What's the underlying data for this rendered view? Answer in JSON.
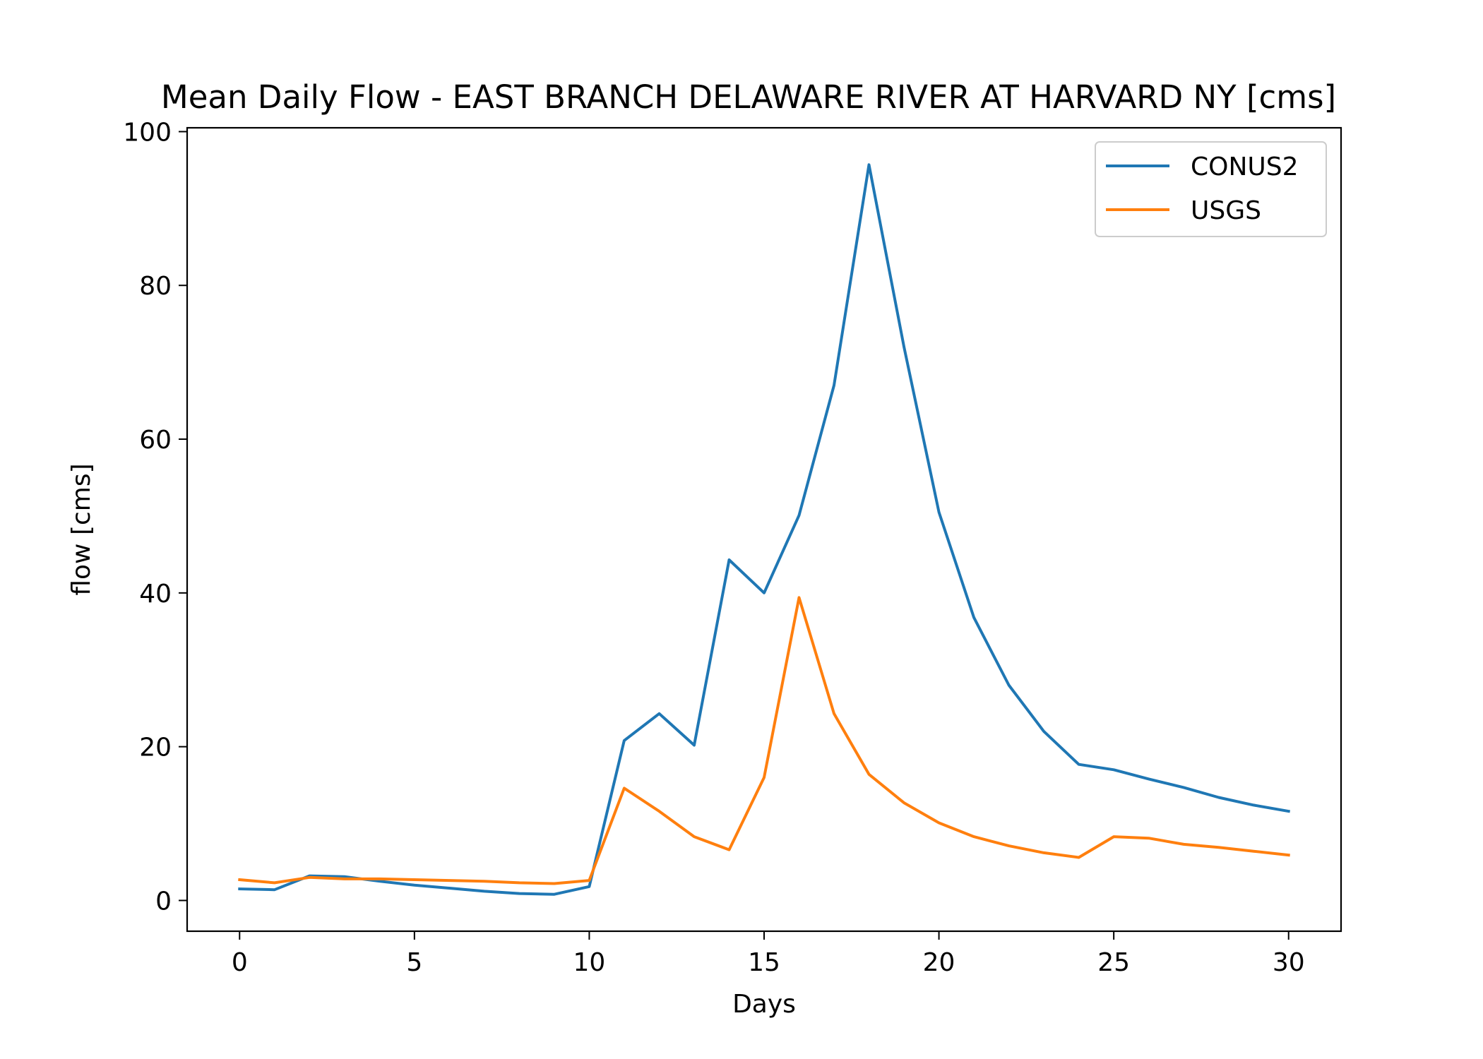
{
  "chart_data": {
    "type": "line",
    "title": "Mean Daily Flow - EAST BRANCH DELAWARE RIVER AT HARVARD NY [cms]",
    "xlabel": "Days",
    "ylabel": "flow [cms]",
    "xlim": [
      -1.5,
      31.5
    ],
    "ylim": [
      -4,
      100.5
    ],
    "xticks": [
      0,
      5,
      10,
      15,
      20,
      25,
      30
    ],
    "yticks": [
      0,
      20,
      40,
      60,
      80,
      100
    ],
    "grid": false,
    "legend_position": "top-right",
    "x": [
      0,
      1,
      2,
      3,
      4,
      5,
      6,
      7,
      8,
      9,
      10,
      11,
      12,
      13,
      14,
      15,
      16,
      17,
      18,
      19,
      20,
      21,
      22,
      23,
      24,
      25,
      26,
      27,
      28,
      29,
      30
    ],
    "series": [
      {
        "name": "CONUS2",
        "color": "#1f77b4",
        "values": [
          1.5,
          1.4,
          3.2,
          3.1,
          2.5,
          2.0,
          1.6,
          1.2,
          0.9,
          0.8,
          1.8,
          20.8,
          24.3,
          20.2,
          44.3,
          40.0,
          50.1,
          67.0,
          95.7,
          72.0,
          50.5,
          36.8,
          28.0,
          22.0,
          17.7,
          17.0,
          15.8,
          14.7,
          13.4,
          12.4,
          11.6
        ]
      },
      {
        "name": "USGS",
        "color": "#ff7f0e",
        "values": [
          2.7,
          2.3,
          3.0,
          2.8,
          2.8,
          2.7,
          2.6,
          2.5,
          2.3,
          2.2,
          2.6,
          14.6,
          11.6,
          8.3,
          6.6,
          16.0,
          39.4,
          24.3,
          16.4,
          12.7,
          10.1,
          8.3,
          7.1,
          6.2,
          5.6,
          8.3,
          8.1,
          7.3,
          6.9,
          6.4,
          5.9
        ]
      }
    ]
  }
}
